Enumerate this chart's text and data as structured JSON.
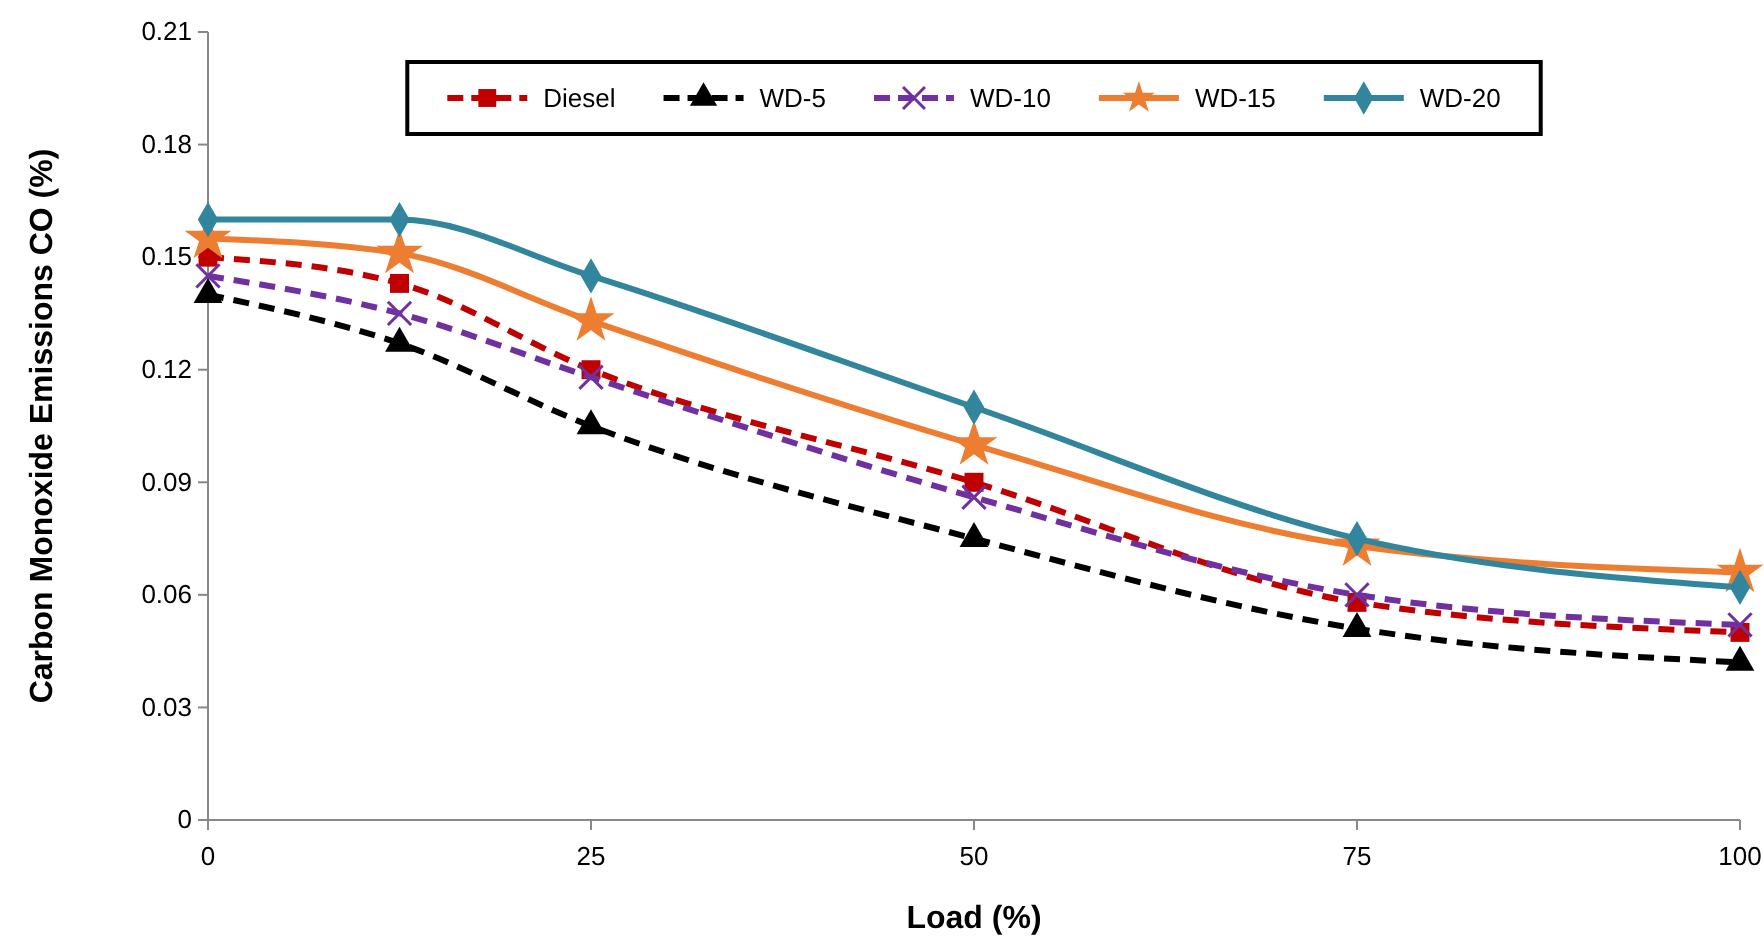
{
  "chart_data": {
    "type": "line",
    "xlabel": "Load (%)",
    "ylabel": "Carbon Monoxide Emissions CO (%)",
    "x": [
      0,
      12.5,
      25,
      50,
      75,
      100
    ],
    "xlim": [
      0,
      100
    ],
    "xticks": [
      0,
      25,
      50,
      75,
      100
    ],
    "ylim": [
      0,
      0.21
    ],
    "yticks": [
      {
        "value": 0,
        "label": "0"
      },
      {
        "value": 0.03,
        "label": "0.03"
      },
      {
        "value": 0.06,
        "label": "0.06"
      },
      {
        "value": 0.09,
        "label": "0.09"
      },
      {
        "value": 0.12,
        "label": "0.12"
      },
      {
        "value": 0.15,
        "label": "0.15"
      },
      {
        "value": 0.18,
        "label": "0.18"
      },
      {
        "value": 0.21,
        "label": "0.21"
      }
    ],
    "grid": false,
    "legend": "top",
    "series": [
      {
        "name": "Diesel",
        "color": "#c00000",
        "marker": "square",
        "line_style": "dashed",
        "values": [
          0.15,
          0.143,
          0.12,
          0.09,
          0.058,
          0.05
        ]
      },
      {
        "name": "WD-5",
        "color": "#000000",
        "marker": "triangle",
        "line_style": "dashed",
        "values": [
          0.14,
          0.127,
          0.105,
          0.075,
          0.051,
          0.042
        ]
      },
      {
        "name": "WD-10",
        "color": "#7030a0",
        "marker": "cross",
        "line_style": "dashed",
        "values": [
          0.145,
          0.135,
          0.118,
          0.086,
          0.06,
          0.052
        ]
      },
      {
        "name": "WD-15",
        "color": "#ed7d31",
        "marker": "star",
        "line_style": "solid",
        "values": [
          0.155,
          0.151,
          0.133,
          0.1,
          0.073,
          0.066
        ]
      },
      {
        "name": "WD-20",
        "color": "#31859c",
        "marker": "diamond",
        "line_style": "solid",
        "values": [
          0.16,
          0.16,
          0.145,
          0.11,
          0.075,
          0.062
        ]
      }
    ]
  }
}
